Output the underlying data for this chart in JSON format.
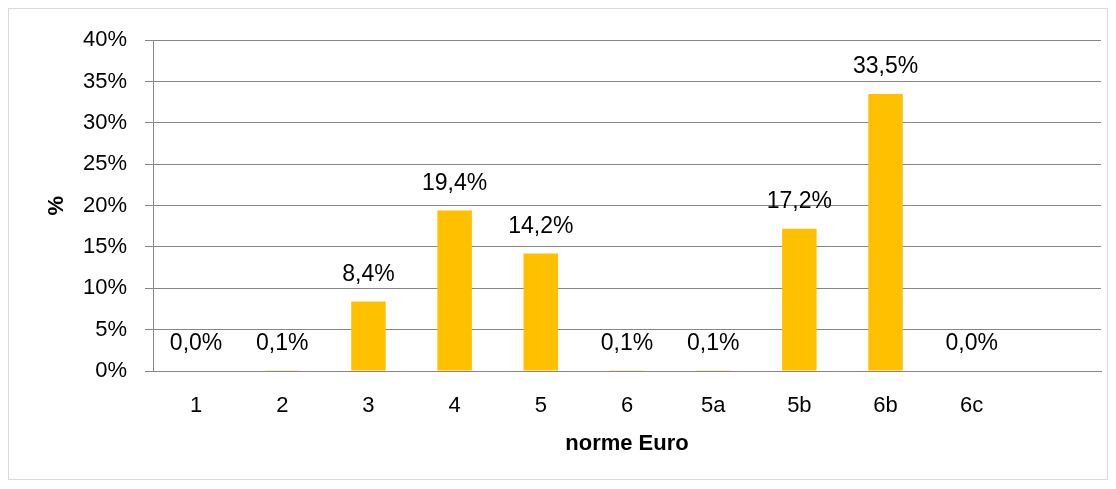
{
  "chart_data": {
    "type": "bar",
    "xlabel": "norme Euro",
    "ylabel": "%",
    "categories": [
      "1",
      "2",
      "3",
      "4",
      "5",
      "6",
      "5a",
      "5b",
      "6b",
      "6c",
      null
    ],
    "values": [
      0.0,
      0.1,
      8.4,
      19.4,
      14.2,
      0.1,
      0.1,
      17.2,
      33.5,
      0.0,
      null
    ],
    "value_labels": [
      "0,0%",
      "0,1%",
      "8,4%",
      "19,4%",
      "14,2%",
      "0,1%",
      "0,1%",
      "17,2%",
      "33,5%",
      "0,0%",
      null
    ],
    "color": "#ffc000",
    "ylim": [
      0,
      40
    ],
    "yticks": [
      {
        "value": 0,
        "label": "0%"
      },
      {
        "value": 5,
        "label": "5%"
      },
      {
        "value": 10,
        "label": "10%"
      },
      {
        "value": 15,
        "label": "15%"
      },
      {
        "value": 20,
        "label": "20%"
      },
      {
        "value": 25,
        "label": "25%"
      },
      {
        "value": 30,
        "label": "30%"
      },
      {
        "value": 35,
        "label": "35%"
      },
      {
        "value": 40,
        "label": "40%"
      }
    ],
    "grid": "y"
  }
}
